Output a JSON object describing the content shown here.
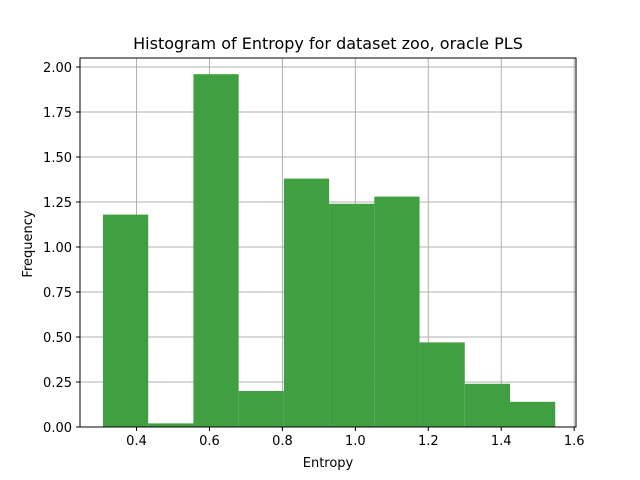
{
  "chart_data": {
    "type": "bar",
    "title": "Histogram of Entropy for dataset zoo, oracle PLS",
    "xlabel": "Entropy",
    "ylabel": "Frequency",
    "xlim": [
      0.245,
      1.605
    ],
    "ylim": [
      0,
      2.05
    ],
    "grid": true,
    "bar_color": "#409f40",
    "bins": [
      {
        "x0": 0.308,
        "x1": 0.432,
        "value": 1.18
      },
      {
        "x0": 0.432,
        "x1": 0.556,
        "value": 0.02
      },
      {
        "x0": 0.556,
        "x1": 0.68,
        "value": 1.96
      },
      {
        "x0": 0.68,
        "x1": 0.804,
        "value": 0.2
      },
      {
        "x0": 0.804,
        "x1": 0.928,
        "value": 1.38
      },
      {
        "x0": 0.928,
        "x1": 1.052,
        "value": 1.24
      },
      {
        "x0": 1.052,
        "x1": 1.176,
        "value": 1.28
      },
      {
        "x0": 1.176,
        "x1": 1.3,
        "value": 0.47
      },
      {
        "x0": 1.3,
        "x1": 1.424,
        "value": 0.24
      },
      {
        "x0": 1.424,
        "x1": 1.548,
        "value": 0.14
      }
    ],
    "xticks": [
      0.4,
      0.6,
      0.8,
      1.0,
      1.2,
      1.4,
      1.6
    ],
    "xtick_labels": [
      "0.4",
      "0.6",
      "0.8",
      "1.0",
      "1.2",
      "1.4",
      "1.6"
    ],
    "yticks": [
      0.0,
      0.25,
      0.5,
      0.75,
      1.0,
      1.25,
      1.5,
      1.75,
      2.0
    ],
    "ytick_labels": [
      "0.00",
      "0.25",
      "0.50",
      "0.75",
      "1.00",
      "1.25",
      "1.50",
      "1.75",
      "2.00"
    ]
  }
}
